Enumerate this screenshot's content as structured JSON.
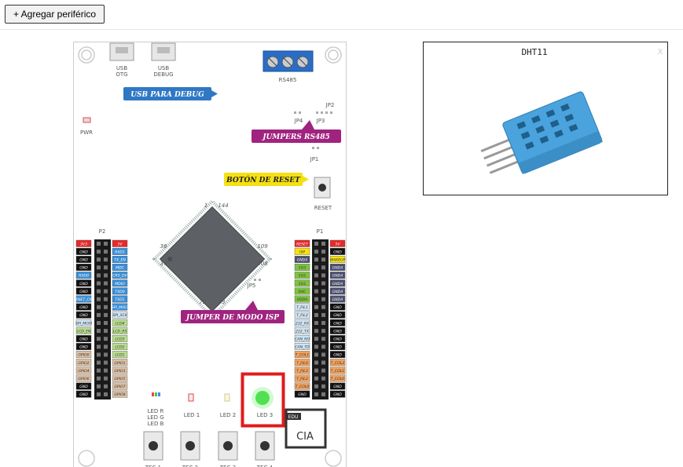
{
  "toolbar": {
    "add_button": "+ Agregar periférico"
  },
  "board": {
    "usb_otg": [
      "USB",
      "OTG"
    ],
    "usb_debug": [
      "USB",
      "DEBUG"
    ],
    "rs485": "RS485",
    "pwr": "PWR",
    "jp2": "JP2",
    "jp4": "JP4",
    "jp3": "JP3",
    "jp1": "JP1",
    "reset": "RESET",
    "jp5": "JP5",
    "chip_pins": [
      "1",
      "144",
      "36",
      "109",
      "37",
      "108",
      "72",
      "73"
    ],
    "logo_edu": "EDU",
    "logo_ciaa": "CIA"
  },
  "callouts": [
    {
      "text": "USB PARA DEBUG",
      "color": "#2f78c4"
    },
    {
      "text": "JUMPERS RS485",
      "color": "#a0237f"
    },
    {
      "text": "BOTÓN DE RESET",
      "color": "#f5e014"
    },
    {
      "text": "JUMPER DE MODO ISP",
      "color": "#a0237f"
    }
  ],
  "headers": [
    {
      "title": "P2",
      "left": [
        {
          "label": "3V3",
          "color": "#e52a2a"
        },
        {
          "label": "GND",
          "color": "#111111"
        },
        {
          "label": "GND",
          "color": "#111111"
        },
        {
          "label": "GND",
          "color": "#111111"
        },
        {
          "label": "RXD0",
          "color": "#3a8fd8"
        },
        {
          "label": "GND",
          "color": "#111111"
        },
        {
          "label": "GND",
          "color": "#111111"
        },
        {
          "label": "ENET_CK",
          "color": "#3a8fd8"
        },
        {
          "label": "GND",
          "color": "#111111"
        },
        {
          "label": "GND",
          "color": "#111111"
        },
        {
          "label": "SPI_MOSI",
          "color": "#cfe3f2"
        },
        {
          "label": "LCD_EN",
          "color": "#b9dc8f"
        },
        {
          "label": "GND",
          "color": "#111111"
        },
        {
          "label": "GND",
          "color": "#111111"
        },
        {
          "label": "GPIO0",
          "color": "#dcbfa3"
        },
        {
          "label": "GPIO2",
          "color": "#dcbfa3"
        },
        {
          "label": "GPIO4",
          "color": "#dcbfa3"
        },
        {
          "label": "GPIO6",
          "color": "#dcbfa3"
        },
        {
          "label": "GND",
          "color": "#111111"
        },
        {
          "label": "GND",
          "color": "#111111"
        }
      ],
      "right": [
        {
          "label": "5V",
          "color": "#e52a2a"
        },
        {
          "label": "RXD1",
          "color": "#3a8fd8"
        },
        {
          "label": "TX_EN",
          "color": "#3a8fd8"
        },
        {
          "label": "MDC",
          "color": "#3a8fd8"
        },
        {
          "label": "CRS_DV",
          "color": "#3a8fd8"
        },
        {
          "label": "MDIO",
          "color": "#3a8fd8"
        },
        {
          "label": "TXD0",
          "color": "#3a8fd8"
        },
        {
          "label": "TXD1",
          "color": "#3a8fd8"
        },
        {
          "label": "SPI_MISO",
          "color": "#3a8fd8"
        },
        {
          "label": "SPI_SCK",
          "color": "#cfe3f2"
        },
        {
          "label": "LCD4",
          "color": "#b9dc8f"
        },
        {
          "label": "LCD_RS",
          "color": "#b9dc8f"
        },
        {
          "label": "LCD3",
          "color": "#b9dc8f"
        },
        {
          "label": "LCD2",
          "color": "#b9dc8f"
        },
        {
          "label": "LCD1",
          "color": "#b9dc8f"
        },
        {
          "label": "GPIO1",
          "color": "#dcbfa3"
        },
        {
          "label": "GPIO3",
          "color": "#dcbfa3"
        },
        {
          "label": "GPIO5",
          "color": "#dcbfa3"
        },
        {
          "label": "GPIO7",
          "color": "#dcbfa3"
        },
        {
          "label": "GPIO8",
          "color": "#dcbfa3"
        }
      ]
    },
    {
      "title": "P1",
      "left": [
        {
          "label": "RESET",
          "color": "#e52a2a"
        },
        {
          "label": "ISP",
          "color": "#f5e014"
        },
        {
          "label": "GNDA",
          "color": "#4b4f6e"
        },
        {
          "label": "CH3",
          "color": "#7fc241"
        },
        {
          "label": "CH2",
          "color": "#7fc241"
        },
        {
          "label": "CH1",
          "color": "#7fc241"
        },
        {
          "label": "DAC",
          "color": "#7fc241"
        },
        {
          "label": "VDDA",
          "color": "#7fc241"
        },
        {
          "label": "T_FIL1",
          "color": "#cfe3f2"
        },
        {
          "label": "T_FIL2",
          "color": "#cfe3f2"
        },
        {
          "label": "232_RX",
          "color": "#cfe3f2"
        },
        {
          "label": "232_TX",
          "color": "#cfe3f2"
        },
        {
          "label": "CAN_RD",
          "color": "#cfe3f2"
        },
        {
          "label": "CAN_TD",
          "color": "#cfe3f2"
        },
        {
          "label": "T_COL1",
          "color": "#f2a25c"
        },
        {
          "label": "T_FIL0",
          "color": "#f2a25c"
        },
        {
          "label": "T_FIL3",
          "color": "#f2a25c"
        },
        {
          "label": "T_FIL2",
          "color": "#f2a25c"
        },
        {
          "label": "T_COL0",
          "color": "#f2a25c"
        },
        {
          "label": "GND",
          "color": "#111111"
        }
      ],
      "right": [
        {
          "label": "5V",
          "color": "#e52a2a"
        },
        {
          "label": "GND",
          "color": "#111111"
        },
        {
          "label": "WAKEUP",
          "color": "#f5e014"
        },
        {
          "label": "GNDA",
          "color": "#4b4f6e"
        },
        {
          "label": "GNDA",
          "color": "#4b4f6e"
        },
        {
          "label": "GNDA",
          "color": "#4b4f6e"
        },
        {
          "label": "GNDA",
          "color": "#4b4f6e"
        },
        {
          "label": "GNDA",
          "color": "#4b4f6e"
        },
        {
          "label": "GND",
          "color": "#111111"
        },
        {
          "label": "GND",
          "color": "#111111"
        },
        {
          "label": "GND",
          "color": "#111111"
        },
        {
          "label": "GND",
          "color": "#111111"
        },
        {
          "label": "GND",
          "color": "#111111"
        },
        {
          "label": "GND",
          "color": "#111111"
        },
        {
          "label": "GND",
          "color": "#111111"
        },
        {
          "label": "T_COL2",
          "color": "#f2a25c"
        },
        {
          "label": "T_COL1",
          "color": "#f2a25c"
        },
        {
          "label": "T_COL0",
          "color": "#f2a25c"
        },
        {
          "label": "GND",
          "color": "#111111"
        },
        {
          "label": "GND",
          "color": "#111111"
        }
      ]
    }
  ],
  "leds": [
    [
      "LED R",
      "LED G",
      "LED B"
    ],
    [
      "LED 1"
    ],
    [
      "LED 2"
    ],
    [
      "LED 3"
    ]
  ],
  "buttons": [
    "TEC 1",
    "TEC 2",
    "TEC 3",
    "TEC 4"
  ],
  "peripheral": {
    "title": "DHT11",
    "close": "X"
  }
}
